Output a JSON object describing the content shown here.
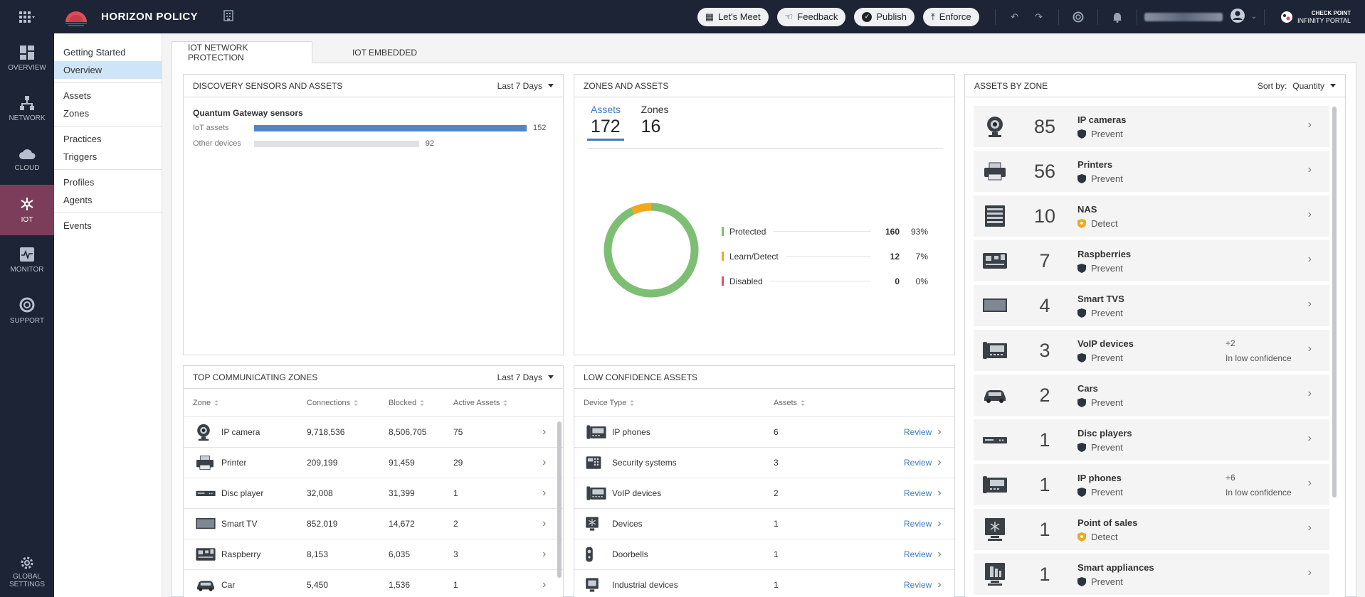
{
  "header": {
    "title": "HORIZON POLICY",
    "buttons": [
      {
        "label": "Let's Meet",
        "icon": "calendar-icon"
      },
      {
        "label": "Feedback",
        "icon": "feedback-icon"
      },
      {
        "label": "Publish",
        "icon": "check-icon"
      },
      {
        "label": "Enforce",
        "icon": "upload-icon"
      }
    ],
    "brand_line1": "CHECK POINT",
    "brand_line2": "INFINITY PORTAL"
  },
  "nav": {
    "items": [
      {
        "label": "OVERVIEW",
        "icon": "dashboard-icon"
      },
      {
        "label": "NETWORK",
        "icon": "network-icon"
      },
      {
        "label": "CLOUD",
        "icon": "cloud-icon"
      },
      {
        "label": "IOT",
        "icon": "iot-icon",
        "active": true
      },
      {
        "label": "MONITOR",
        "icon": "monitor-icon"
      },
      {
        "label": "SUPPORT",
        "icon": "lifebuoy-icon"
      }
    ],
    "settings_line1": "GLOBAL",
    "settings_line2": "SETTINGS"
  },
  "subnav": {
    "groups": [
      [
        "Getting Started",
        "Overview"
      ],
      [
        "Assets",
        "Zones"
      ],
      [
        "Practices",
        "Triggers"
      ],
      [
        "Profiles",
        "Agents"
      ],
      [
        "Events"
      ]
    ],
    "active": "Overview"
  },
  "tabs": [
    "IOT NETWORK PROTECTION",
    "IOT EMBEDDED"
  ],
  "discovery": {
    "title": "DISCOVERY SENSORS AND ASSETS",
    "range": "Last 7 Days",
    "subtitle": "Quantum Gateway sensors",
    "rows": [
      {
        "label": "IoT assets",
        "value": "152",
        "fraction": 1.0,
        "color": "#4f86c6"
      },
      {
        "label": "Other devices",
        "value": "92",
        "fraction": 0.605,
        "color": "#dfe1e4"
      }
    ]
  },
  "zones_assets": {
    "title": "ZONES AND ASSETS",
    "tabs": [
      {
        "label": "Assets",
        "count": "172"
      },
      {
        "label": "Zones",
        "count": "16"
      }
    ],
    "legend": [
      {
        "label": "Protected",
        "count": "160",
        "pct": "93%",
        "color": "#7dbf72"
      },
      {
        "label": "Learn/Detect",
        "count": "12",
        "pct": "7%",
        "color": "#f2a81d"
      },
      {
        "label": "Disabled",
        "count": "0",
        "pct": "0%",
        "color": "#e1525d"
      }
    ]
  },
  "top_zones": {
    "title": "TOP COMMUNICATING ZONES",
    "range": "Last 7 Days",
    "columns": [
      "Zone",
      "Connections",
      "Blocked",
      "Active Assets"
    ],
    "rows": [
      {
        "icon": "ip-camera-icon",
        "zone": "IP camera",
        "connections": "9,718,536",
        "blocked": "8,506,705",
        "active": "75"
      },
      {
        "icon": "printer-icon",
        "zone": "Printer",
        "connections": "209,199",
        "blocked": "91,459",
        "active": "29"
      },
      {
        "icon": "disc-player-icon",
        "zone": "Disc player",
        "connections": "32,008",
        "blocked": "31,399",
        "active": "1"
      },
      {
        "icon": "smart-tv-icon",
        "zone": "Smart TV",
        "connections": "852,019",
        "blocked": "14,672",
        "active": "2"
      },
      {
        "icon": "raspberry-icon",
        "zone": "Raspberry",
        "connections": "8,153",
        "blocked": "6,035",
        "active": "3"
      },
      {
        "icon": "car-icon",
        "zone": "Car",
        "connections": "5,450",
        "blocked": "1,536",
        "active": "1"
      }
    ]
  },
  "low_conf": {
    "title": "LOW CONFIDENCE ASSETS",
    "columns": [
      "Device Type",
      "Assets"
    ],
    "action": "Review",
    "rows": [
      {
        "icon": "ip-phone-icon",
        "type": "IP phones",
        "assets": "6"
      },
      {
        "icon": "security-system-icon",
        "type": "Security systems",
        "assets": "3"
      },
      {
        "icon": "voip-icon",
        "type": "VoIP devices",
        "assets": "2"
      },
      {
        "icon": "device-icon",
        "type": "Devices",
        "assets": "1"
      },
      {
        "icon": "doorbell-icon",
        "type": "Doorbells",
        "assets": "1"
      },
      {
        "icon": "industrial-device-icon",
        "type": "Industrial devices",
        "assets": "1"
      }
    ]
  },
  "assets_by_zone": {
    "title": "ASSETS BY ZONE",
    "sort_label": "Sort by:",
    "sort_value": "Quantity",
    "rows": [
      {
        "icon": "ip-camera-icon",
        "count": "85",
        "name": "IP cameras",
        "mode": "Prevent"
      },
      {
        "icon": "printer-icon",
        "count": "56",
        "name": "Printers",
        "mode": "Prevent"
      },
      {
        "icon": "nas-icon",
        "count": "10",
        "name": "NAS",
        "mode": "Detect"
      },
      {
        "icon": "raspberry-icon",
        "count": "7",
        "name": "Raspberries",
        "mode": "Prevent"
      },
      {
        "icon": "smart-tv-icon",
        "count": "4",
        "name": "Smart TVS",
        "mode": "Prevent"
      },
      {
        "icon": "voip-icon",
        "count": "3",
        "name": "VoIP devices",
        "mode": "Prevent",
        "extra": "+2",
        "extra_text": "In low confidence"
      },
      {
        "icon": "car-icon",
        "count": "2",
        "name": "Cars",
        "mode": "Prevent"
      },
      {
        "icon": "disc-player-icon",
        "count": "1",
        "name": "Disc players",
        "mode": "Prevent"
      },
      {
        "icon": "ip-phone-icon",
        "count": "1",
        "name": "IP phones",
        "mode": "Prevent",
        "extra": "+6",
        "extra_text": "In low confidence"
      },
      {
        "icon": "pos-icon",
        "count": "1",
        "name": "Point of sales",
        "mode": "Detect"
      },
      {
        "icon": "smart-appliance-icon",
        "count": "1",
        "name": "Smart appliances",
        "mode": "Prevent"
      }
    ]
  }
}
